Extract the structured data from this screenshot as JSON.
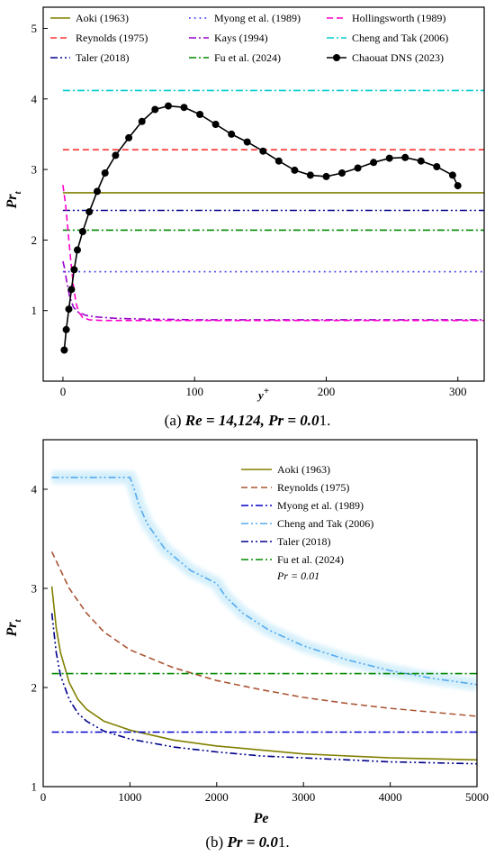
{
  "chart_data": [
    {
      "type": "line",
      "panel": "a",
      "caption_prefix": "(a) ",
      "caption_math": "Re = 14,124, Pr = 0.0",
      "caption_suffix": "1.",
      "caption": "(a) Re = 14,124, Pr = 0.01.",
      "xlabel": "y",
      "xlabel_sup": "+",
      "ylabel": "Pr",
      "ylabel_sub": "t",
      "xlim": [
        -15,
        320
      ],
      "ylim": [
        0,
        5.3
      ],
      "xticks": [
        0,
        100,
        200,
        300
      ],
      "yticks": [
        1,
        2,
        3,
        4,
        5
      ],
      "legend_placement": "top",
      "series": [
        {
          "name": "Aoki (1963)",
          "color": "#808000",
          "dash": "solid",
          "x": [
            0,
            320
          ],
          "y": [
            2.67,
            2.67
          ]
        },
        {
          "name": "Reynolds (1975)",
          "color": "#ff3333",
          "dash": "dash",
          "x": [
            0,
            320
          ],
          "y": [
            3.28,
            3.28
          ]
        },
        {
          "name": "Taler (2018)",
          "color": "#00008b",
          "dash": "dashdotdot",
          "x": [
            0,
            320
          ],
          "y": [
            2.42,
            2.42
          ]
        },
        {
          "name": "Myong et al. (1989)",
          "color": "#3333ee",
          "dash": "dot",
          "x": [
            0,
            320
          ],
          "y": [
            1.55,
            1.55
          ]
        },
        {
          "name": "Kays (1994)",
          "color": "#9900cc",
          "dash": "dashdot",
          "x": [
            0,
            1,
            3,
            5,
            8,
            12,
            18,
            25,
            40,
            60,
            100,
            150,
            200,
            250,
            300,
            320
          ],
          "y": [
            1.7,
            1.62,
            1.4,
            1.2,
            1.05,
            0.97,
            0.93,
            0.91,
            0.89,
            0.88,
            0.87,
            0.87,
            0.87,
            0.87,
            0.87,
            0.87
          ]
        },
        {
          "name": "Fu et al. (2024)",
          "color": "#008800",
          "dash": "dashdot",
          "x": [
            0,
            320
          ],
          "y": [
            2.14,
            2.14
          ]
        },
        {
          "name": "Hollingsworth (1989)",
          "color": "#ff00cc",
          "dash": "dash",
          "x": [
            0,
            2,
            4,
            6,
            8,
            10,
            12,
            15,
            20,
            30,
            60,
            100,
            200,
            320
          ],
          "y": [
            2.78,
            2.5,
            2.1,
            1.7,
            1.35,
            1.1,
            0.98,
            0.9,
            0.87,
            0.86,
            0.86,
            0.86,
            0.86,
            0.86
          ]
        },
        {
          "name": "Cheng and Tak (2006)",
          "color": "#00cccc",
          "dash": "dashdot",
          "x": [
            0,
            320
          ],
          "y": [
            4.12,
            4.12
          ]
        },
        {
          "name": "Chaouat DNS (2023)",
          "color": "#000000",
          "dash": "solid",
          "marker": "circle",
          "x": [
            1,
            2.5,
            4.5,
            6.5,
            8.5,
            11,
            15,
            20,
            26,
            32,
            40,
            50,
            60,
            70,
            80,
            92,
            104,
            116,
            128,
            140,
            152,
            164,
            176,
            188,
            200,
            212,
            224,
            236,
            248,
            260,
            272,
            284,
            296,
            300
          ],
          "y": [
            0.44,
            0.73,
            1.02,
            1.3,
            1.58,
            1.86,
            2.12,
            2.4,
            2.69,
            2.95,
            3.2,
            3.45,
            3.68,
            3.85,
            3.9,
            3.88,
            3.78,
            3.64,
            3.5,
            3.39,
            3.26,
            3.12,
            2.99,
            2.92,
            2.9,
            2.95,
            3.02,
            3.1,
            3.16,
            3.17,
            3.12,
            3.04,
            2.92,
            2.77
          ]
        }
      ]
    },
    {
      "type": "line",
      "panel": "b",
      "caption_prefix": "(b) ",
      "caption_math": "Pr = 0.0",
      "caption_suffix": "1.",
      "caption": "(b) Pr = 0.01.",
      "xlabel": "Pe",
      "ylabel": "Pr",
      "ylabel_sub": "t",
      "xlim": [
        0,
        5000
      ],
      "ylim": [
        1,
        4.5
      ],
      "xticks": [
        0,
        1000,
        2000,
        3000,
        4000,
        5000
      ],
      "yticks": [
        1,
        2,
        3,
        4
      ],
      "legend_placement": "top-right",
      "annotation": "Pr = 0.01",
      "series": [
        {
          "name": "Aoki (1963)",
          "color": "#808000",
          "dash": "solid",
          "x": [
            100,
            150,
            200,
            300,
            400,
            500,
            700,
            1000,
            1500,
            2000,
            2500,
            3000,
            3500,
            4000,
            4500,
            5000
          ],
          "y": [
            3.02,
            2.6,
            2.35,
            2.05,
            1.88,
            1.78,
            1.66,
            1.57,
            1.47,
            1.41,
            1.37,
            1.33,
            1.31,
            1.29,
            1.28,
            1.27
          ]
        },
        {
          "name": "Reynolds (1975)",
          "color": "#aa5533",
          "dash": "dash",
          "x": [
            100,
            300,
            500,
            700,
            1000,
            1500,
            2000,
            2500,
            3000,
            3500,
            4000,
            4500,
            5000
          ],
          "y": [
            3.37,
            3.0,
            2.75,
            2.56,
            2.38,
            2.2,
            2.07,
            1.98,
            1.9,
            1.84,
            1.79,
            1.75,
            1.71
          ]
        },
        {
          "name": "Myong et al. (1989)",
          "color": "#0000cc",
          "dash": "dashdot",
          "x": [
            100,
            5000
          ],
          "y": [
            1.55,
            1.55
          ]
        },
        {
          "name": "Cheng and Tak (2006)",
          "color": "#55aaee",
          "dash": "dashdotdot",
          "band": "#d6f0fb",
          "x": [
            100,
            1000,
            1050,
            1100,
            1200,
            1400,
            1700,
            2000,
            2100,
            2300,
            2600,
            3000,
            3500,
            4000,
            4500,
            5000
          ],
          "y": [
            4.12,
            4.12,
            4.0,
            3.85,
            3.65,
            3.4,
            3.18,
            3.05,
            2.92,
            2.75,
            2.58,
            2.42,
            2.28,
            2.17,
            2.09,
            2.03
          ]
        },
        {
          "name": "Taler (2018)",
          "color": "#00008b",
          "dash": "dashdotdot",
          "x": [
            100,
            150,
            200,
            300,
            400,
            500,
            700,
            1000,
            1500,
            2000,
            2500,
            3000,
            3500,
            4000,
            4500,
            5000
          ],
          "y": [
            2.75,
            2.35,
            2.12,
            1.88,
            1.74,
            1.66,
            1.56,
            1.48,
            1.4,
            1.35,
            1.31,
            1.29,
            1.27,
            1.25,
            1.24,
            1.23
          ]
        },
        {
          "name": "Fu et al. (2024)",
          "color": "#008800",
          "dash": "dashdot",
          "x": [
            100,
            5000
          ],
          "y": [
            2.14,
            2.14
          ]
        }
      ]
    }
  ]
}
